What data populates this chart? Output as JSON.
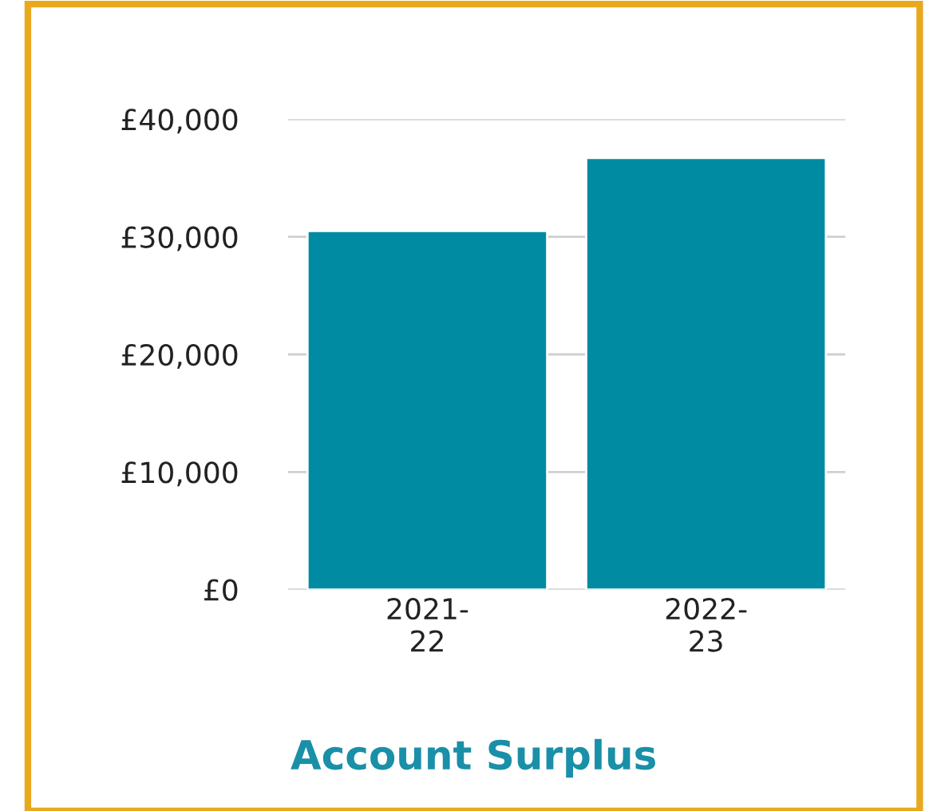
{
  "chart_data": {
    "type": "bar",
    "title": "Account Surplus",
    "categories": [
      "2021-\n22",
      "2022-\n23"
    ],
    "values": [
      30500,
      36700
    ],
    "color": "#008ba3",
    "ylim": [
      0,
      40000
    ],
    "yticks": [
      {
        "value": 0,
        "label": "£0"
      },
      {
        "value": 10000,
        "label": "£10,000"
      },
      {
        "value": 20000,
        "label": "£20,000"
      },
      {
        "value": 30000,
        "label": "£30,000"
      },
      {
        "value": 40000,
        "label": "£40,000"
      }
    ],
    "grid": "y",
    "legend": false
  }
}
